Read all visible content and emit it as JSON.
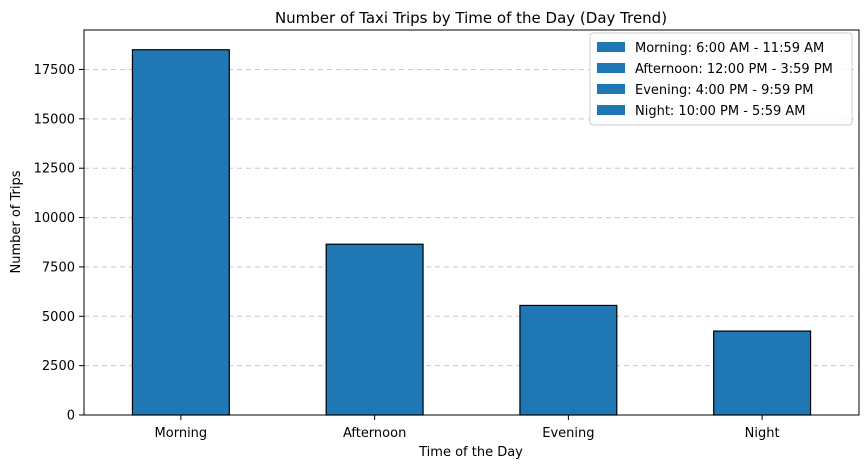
{
  "chart_data": {
    "type": "bar",
    "title": "Number of Taxi Trips by Time of the Day (Day Trend)",
    "xlabel": "Time of the Day",
    "ylabel": "Number of Trips",
    "categories": [
      "Morning",
      "Afternoon",
      "Evening",
      "Night"
    ],
    "values": [
      18500,
      8650,
      5550,
      4250
    ],
    "ylim": [
      0,
      19500
    ],
    "yticks": [
      0,
      2500,
      5000,
      7500,
      10000,
      12500,
      15000,
      17500
    ],
    "ytick_labels": [
      "0",
      "2500",
      "5000",
      "7500",
      "10000",
      "12500",
      "15000",
      "17500"
    ],
    "grid": "y-dashed",
    "legend_position": "top-right",
    "legend": [
      "Morning: 6:00 AM - 11:59 AM",
      "Afternoon: 12:00 PM - 3:59 PM",
      "Evening: 4:00 PM - 9:59 PM",
      "Night: 10:00 PM - 5:59 AM"
    ],
    "colors": {
      "bar": "#1f77b4",
      "bar_edge": "#000000",
      "grid": "#c8c8c8"
    }
  }
}
